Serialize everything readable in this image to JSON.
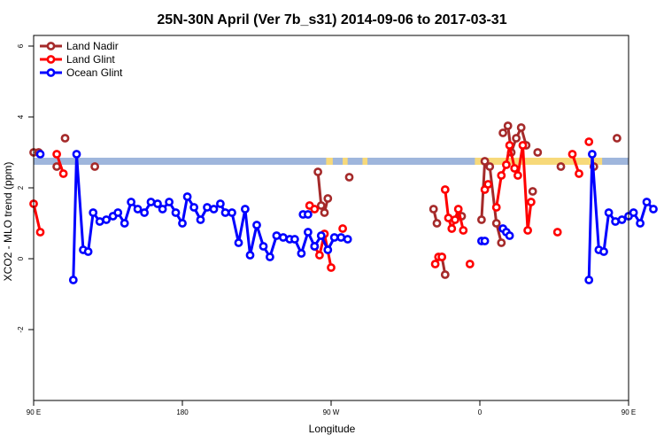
{
  "chart_data": {
    "type": "line",
    "title": "25N-30N April (Ver 7b_s31)   2014-09-06 to 2017-03-31",
    "xlabel": "Longitude",
    "ylabel": "XCO2 - MLO trend (ppm)",
    "xlim": [
      90,
      450
    ],
    "ylim": [
      -4,
      6.3
    ],
    "x_ticks": [
      {
        "value": 90,
        "label": "90 E"
      },
      {
        "value": 180,
        "label": "180"
      },
      {
        "value": 270,
        "label": "90 W"
      },
      {
        "value": 360,
        "label": "0"
      },
      {
        "value": 450,
        "label": "90 E"
      },
      {
        "value": 540,
        "label": "180"
      }
    ],
    "y_ticks": [
      {
        "value": -2,
        "label": "-2"
      },
      {
        "value": 0,
        "label": "0"
      },
      {
        "value": 2,
        "label": "2"
      },
      {
        "value": 4,
        "label": "4"
      },
      {
        "value": 6,
        "label": "6"
      }
    ],
    "legend_position": "top-left",
    "grid": false,
    "band": {
      "ymin": 2.65,
      "ymax": 2.85,
      "background_color": "#9fb6dc",
      "highlight_color": "#f7d97a",
      "highlights": [
        [
          267,
          271
        ],
        [
          277,
          280
        ],
        [
          289,
          292
        ],
        [
          357,
          434
        ],
        [
          486,
          499
        ]
      ]
    },
    "series": [
      {
        "name": "Land Nadir",
        "color": "#a52a2a",
        "segments": [
          [
            [
              90,
              3.0
            ],
            [
              93,
              3.0
            ]
          ],
          [
            [
              104,
              2.6
            ]
          ],
          [
            [
              109,
              3.4
            ]
          ],
          [
            [
              127,
              2.6
            ]
          ],
          [
            [
              262,
              2.45
            ],
            [
              264,
              1.5
            ],
            [
              266,
              1.3
            ],
            [
              268,
              1.7
            ]
          ],
          [
            [
              281,
              2.3
            ]
          ],
          [
            [
              332,
              1.4
            ],
            [
              334,
              1.0
            ]
          ],
          [
            [
              337,
              0.05
            ],
            [
              339,
              -0.45
            ]
          ],
          [
            [
              349,
              1.2
            ]
          ],
          [
            [
              361,
              1.1
            ],
            [
              363,
              2.75
            ],
            [
              366,
              2.6
            ],
            [
              370,
              1.0
            ],
            [
              373,
              0.45
            ]
          ],
          [
            [
              374,
              3.55
            ],
            [
              377,
              3.75
            ],
            [
              379,
              3.0
            ],
            [
              382,
              3.4
            ],
            [
              385,
              3.7
            ],
            [
              388,
              3.2
            ]
          ],
          [
            [
              392,
              1.9
            ]
          ],
          [
            [
              395,
              3.0
            ]
          ],
          [
            [
              409,
              2.6
            ]
          ],
          [
            [
              429,
              2.6
            ]
          ],
          [
            [
              443,
              3.4
            ]
          ]
        ]
      },
      {
        "name": "Land Glint",
        "color": "#ff0000",
        "segments": [
          [
            [
              90,
              1.55
            ],
            [
              94,
              0.75
            ]
          ],
          [
            [
              104,
              2.95
            ],
            [
              108,
              2.4
            ]
          ],
          [
            [
              257,
              1.5
            ],
            [
              260,
              1.4
            ]
          ],
          [
            [
              260,
              0.35
            ],
            [
              263,
              0.1
            ],
            [
              266,
              0.7
            ],
            [
              270,
              -0.25
            ]
          ],
          [
            [
              277,
              0.85
            ]
          ],
          [
            [
              333,
              -0.15
            ],
            [
              335,
              0.05
            ],
            [
              337,
              0.05
            ]
          ],
          [
            [
              339,
              1.95
            ],
            [
              341,
              1.15
            ],
            [
              343,
              0.85
            ],
            [
              345,
              1.1
            ],
            [
              347,
              1.4
            ],
            [
              350,
              0.8
            ]
          ],
          [
            [
              354,
              -0.15
            ]
          ],
          [
            [
              363,
              1.95
            ],
            [
              365,
              2.1
            ]
          ],
          [
            [
              370,
              1.45
            ],
            [
              373,
              2.35
            ],
            [
              376,
              2.65
            ],
            [
              378,
              3.2
            ],
            [
              381,
              2.55
            ],
            [
              383,
              2.35
            ],
            [
              386,
              3.2
            ],
            [
              389,
              0.8
            ],
            [
              391,
              1.6
            ]
          ],
          [
            [
              407,
              0.75
            ]
          ],
          [
            [
              416,
              2.95
            ],
            [
              420,
              2.4
            ]
          ],
          [
            [
              426,
              3.3
            ]
          ]
        ]
      },
      {
        "name": "Ocean Glint",
        "color": "#0000ff",
        "segments": [
          [
            [
              94,
              2.95
            ]
          ],
          [
            [
              114,
              -0.6
            ],
            [
              116,
              2.95
            ],
            [
              120,
              0.25
            ],
            [
              123,
              0.2
            ],
            [
              126,
              1.3
            ],
            [
              130,
              1.05
            ],
            [
              134,
              1.1
            ],
            [
              138,
              1.2
            ],
            [
              141,
              1.3
            ],
            [
              145,
              1.0
            ],
            [
              149,
              1.6
            ],
            [
              153,
              1.4
            ],
            [
              157,
              1.3
            ],
            [
              161,
              1.6
            ],
            [
              165,
              1.55
            ],
            [
              168,
              1.4
            ],
            [
              172,
              1.6
            ],
            [
              176,
              1.3
            ],
            [
              180,
              1.0
            ],
            [
              183,
              1.75
            ],
            [
              187,
              1.45
            ],
            [
              191,
              1.1
            ],
            [
              195,
              1.45
            ],
            [
              199,
              1.4
            ],
            [
              203,
              1.55
            ],
            [
              206,
              1.3
            ],
            [
              210,
              1.3
            ],
            [
              214,
              0.45
            ],
            [
              218,
              1.4
            ],
            [
              221,
              0.1
            ],
            [
              225,
              0.95
            ],
            [
              229,
              0.35
            ],
            [
              233,
              0.05
            ],
            [
              237,
              0.65
            ],
            [
              241,
              0.6
            ],
            [
              245,
              0.55
            ],
            [
              248,
              0.55
            ],
            [
              252,
              0.15
            ],
            [
              256,
              0.75
            ],
            [
              260,
              0.35
            ],
            [
              264,
              0.65
            ],
            [
              268,
              0.25
            ],
            [
              272,
              0.6
            ],
            [
              276,
              0.6
            ],
            [
              280,
              0.55
            ]
          ],
          [
            [
              253,
              1.25
            ],
            [
              256,
              1.25
            ]
          ],
          [
            [
              361,
              0.5
            ],
            [
              363,
              0.5
            ]
          ],
          [
            [
              374,
              0.85
            ],
            [
              376,
              0.75
            ],
            [
              378,
              0.65
            ]
          ],
          [
            [
              426,
              -0.6
            ],
            [
              428,
              2.95
            ],
            [
              432,
              0.25
            ],
            [
              435,
              0.2
            ],
            [
              438,
              1.3
            ],
            [
              442,
              1.05
            ],
            [
              446,
              1.1
            ],
            [
              450,
              1.2
            ],
            [
              453,
              1.3
            ],
            [
              457,
              1.0
            ],
            [
              461,
              1.6
            ],
            [
              465,
              1.4
            ]
          ]
        ]
      }
    ]
  }
}
